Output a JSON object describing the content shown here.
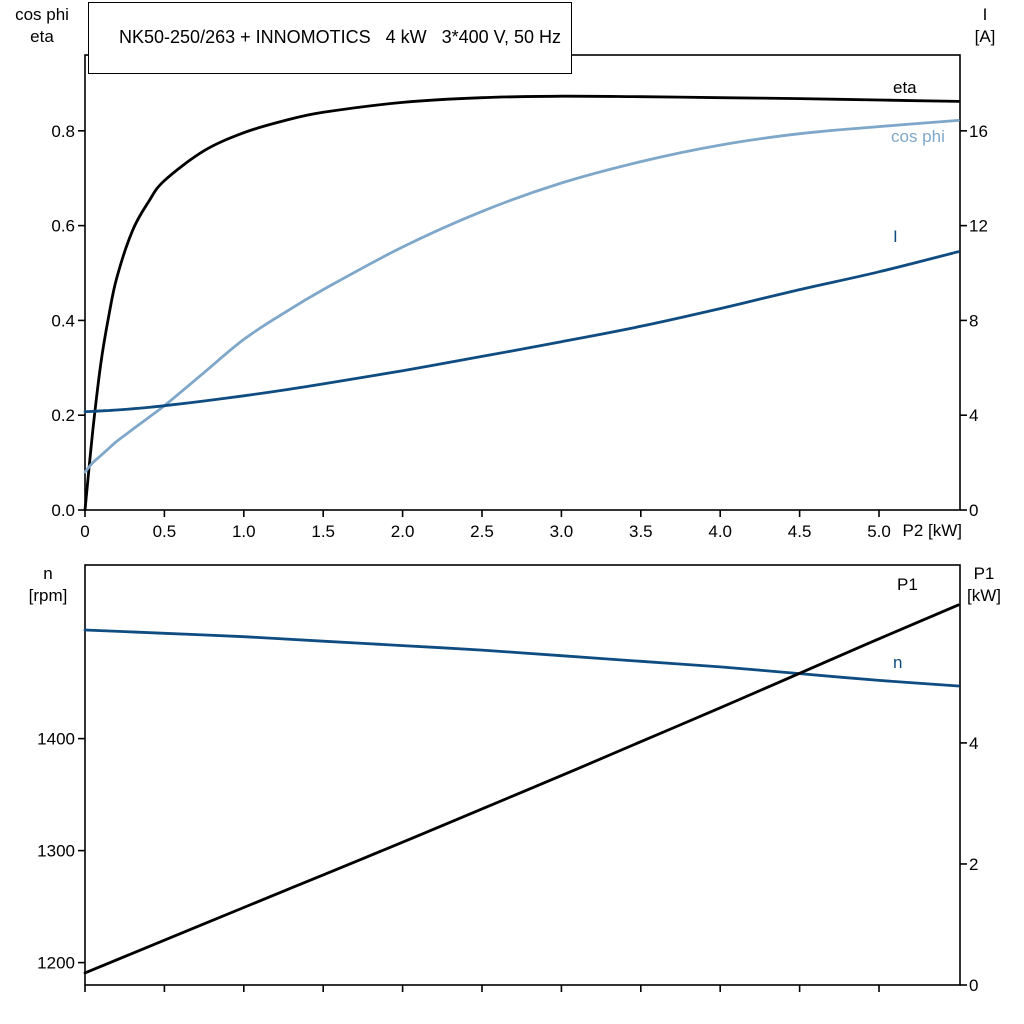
{
  "axis_labels": {
    "top_left": [
      "cos phi",
      "eta"
    ],
    "top_right": [
      "I",
      "[A]"
    ],
    "bottom_left": [
      "n",
      "[rpm]"
    ],
    "bottom_right": [
      "P1",
      "[kW]"
    ],
    "x_axis_top": "P2 [kW]"
  },
  "chart_data": [
    {
      "type": "line",
      "title": "NK50-250/263 + INNOMOTICS   4 kW   3*400 V, 50 Hz",
      "xlabel": "P2 [kW]",
      "grid": false,
      "x_axis": {
        "range": [
          0,
          5.51
        ],
        "ticks": [
          0,
          0.5,
          1,
          1.5,
          2,
          2.5,
          3,
          3.5,
          4,
          4.5,
          5
        ],
        "tick_labels": [
          "0",
          "0.5",
          "1.0",
          "1.5",
          "2.0",
          "2.5",
          "3.0",
          "3.5",
          "4.0",
          "4.5",
          "5.0"
        ]
      },
      "y_left": {
        "label": "cos phi / eta",
        "range": [
          0,
          0.96
        ],
        "ticks": [
          0,
          0.2,
          0.4,
          0.6,
          0.8
        ],
        "tick_labels": [
          "0.0",
          "0.2",
          "0.4",
          "0.6",
          "0.8"
        ]
      },
      "y_right": {
        "label": "I [A]",
        "range": [
          0,
          19.2
        ],
        "ticks": [
          0,
          4,
          8,
          12,
          16
        ],
        "tick_labels": [
          "0",
          "4",
          "8",
          "12",
          "16"
        ]
      },
      "x": [
        0,
        0.05,
        0.1,
        0.15,
        0.2,
        0.3,
        0.4,
        0.5,
        0.75,
        1,
        1.25,
        1.5,
        2,
        2.5,
        3,
        3.5,
        4,
        4.5,
        5,
        5.5
      ],
      "series": [
        {
          "name": "eta",
          "axis": "left",
          "color": "#000000",
          "values": [
            0,
            0.17,
            0.31,
            0.41,
            0.49,
            0.59,
            0.65,
            0.695,
            0.758,
            0.796,
            0.821,
            0.839,
            0.86,
            0.87,
            0.873,
            0.872,
            0.87,
            0.868,
            0.865,
            0.862
          ]
        },
        {
          "name": "cos phi",
          "axis": "left",
          "color": "#7fa7c9",
          "values": [
            0.08,
            0.1,
            0.115,
            0.13,
            0.145,
            0.17,
            0.195,
            0.22,
            0.29,
            0.36,
            0.415,
            0.465,
            0.555,
            0.63,
            0.69,
            0.735,
            0.77,
            0.794,
            0.809,
            0.822
          ]
        },
        {
          "name": "I",
          "axis": "right",
          "color": "#0f4c81",
          "values": [
            4.15,
            4.16,
            4.18,
            4.2,
            4.22,
            4.27,
            4.33,
            4.4,
            4.6,
            4.82,
            5.06,
            5.32,
            5.88,
            6.48,
            7.1,
            7.75,
            8.5,
            9.3,
            10.05,
            10.9
          ]
        }
      ]
    },
    {
      "type": "line",
      "title": "",
      "xlabel": "",
      "grid": false,
      "x_axis": {
        "range": [
          0,
          5.51
        ],
        "ticks": [
          0,
          0.5,
          1,
          1.5,
          2,
          2.5,
          3,
          3.5,
          4,
          4.5,
          5
        ],
        "tick_labels": []
      },
      "y_left": {
        "label": "n [rpm]",
        "range": [
          1180,
          1555
        ],
        "ticks": [
          1200,
          1300,
          1400
        ],
        "tick_labels": [
          "1200",
          "1300",
          "1400"
        ]
      },
      "y_right": {
        "label": "P1 [kW]",
        "range": [
          0,
          6.94
        ],
        "ticks": [
          0,
          2,
          4
        ],
        "tick_labels": [
          "0",
          "2",
          "4"
        ]
      },
      "x": [
        0,
        0.5,
        1,
        1.5,
        2,
        2.5,
        3,
        3.5,
        4,
        4.5,
        5,
        5.5
      ],
      "series": [
        {
          "name": "n",
          "axis": "left",
          "color": "#0f4c81",
          "values": [
            1497,
            1494,
            1491,
            1487,
            1483,
            1479,
            1474,
            1469,
            1464,
            1458,
            1452,
            1447
          ]
        },
        {
          "name": "P1",
          "axis": "right",
          "color": "#000000",
          "values": [
            0.2,
            0.74,
            1.28,
            1.82,
            2.36,
            2.91,
            3.46,
            4.02,
            4.58,
            5.15,
            5.72,
            6.28
          ]
        }
      ]
    }
  ]
}
